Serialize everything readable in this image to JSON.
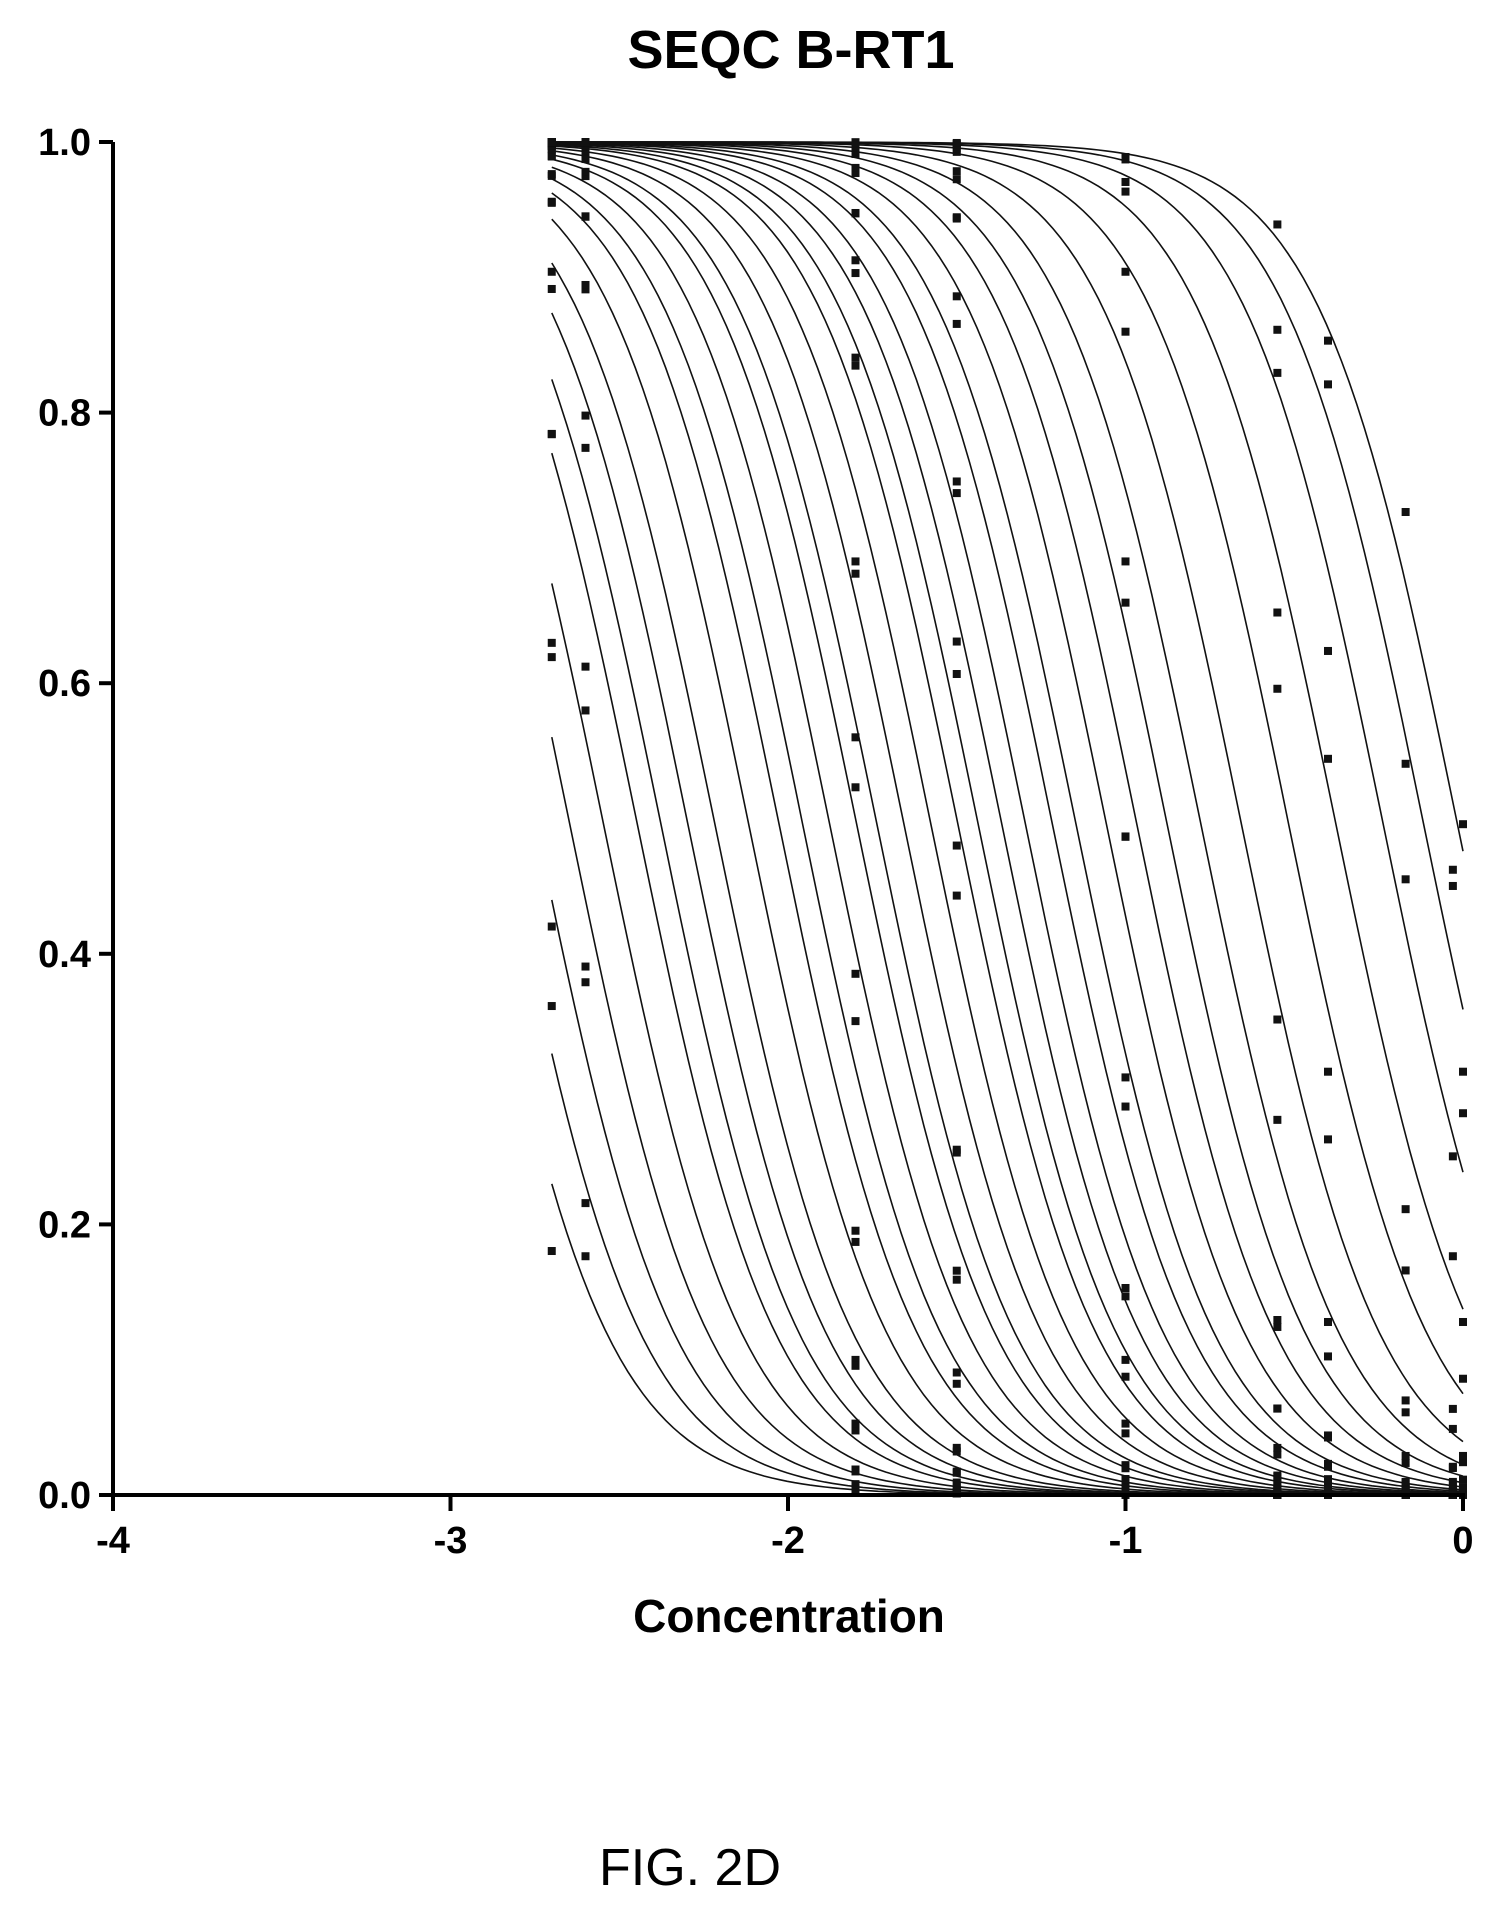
{
  "figure_label": "FIG. 2D",
  "chart_data": {
    "type": "line",
    "title": "SEQC B-RT1",
    "xlabel": "Concentration",
    "ylabel": "",
    "xlim": [
      -4,
      0
    ],
    "ylim": [
      0,
      1
    ],
    "x_ticks": [
      -4,
      -3,
      -2,
      -1,
      0
    ],
    "x_tick_labels": [
      "-4",
      "-3",
      "-2",
      "-1",
      "0"
    ],
    "y_ticks": [
      0,
      0.2,
      0.4,
      0.6,
      0.8,
      1.0
    ],
    "y_tick_labels": [
      "0.0",
      "0.2",
      "0.4",
      "0.6",
      "0.8",
      "1.0"
    ],
    "grid": false,
    "legend": "none",
    "colors": {
      "line": "#111111",
      "point": "#111111",
      "axis": "#000000"
    },
    "measured_concentrations": [
      -2.7,
      -2.6,
      -1.8,
      -1.5,
      -1.0,
      -0.55,
      -0.4,
      -0.17,
      -0.03,
      0
    ],
    "curve_model": "logistic_decreasing",
    "curve_hill_slope": 2.1,
    "series": [
      {
        "ic50": -2.95
      },
      {
        "ic50": -2.85
      },
      {
        "ic50": -2.75
      },
      {
        "ic50": -2.65
      },
      {
        "ic50": -2.55
      },
      {
        "ic50": -2.45
      },
      {
        "ic50": -2.38
      },
      {
        "ic50": -2.3
      },
      {
        "ic50": -2.22
      },
      {
        "ic50": -2.12
      },
      {
        "ic50": -2.03
      },
      {
        "ic50": -1.96
      },
      {
        "ic50": -1.88
      },
      {
        "ic50": -1.8
      },
      {
        "ic50": -1.74
      },
      {
        "ic50": -1.66
      },
      {
        "ic50": -1.58
      },
      {
        "ic50": -1.5
      },
      {
        "ic50": -1.44
      },
      {
        "ic50": -1.37
      },
      {
        "ic50": -1.3
      },
      {
        "ic50": -1.22
      },
      {
        "ic50": -1.15
      },
      {
        "ic50": -1.06
      },
      {
        "ic50": -0.97
      },
      {
        "ic50": -0.88
      },
      {
        "ic50": -0.78
      },
      {
        "ic50": -0.66
      },
      {
        "ic50": -0.52
      },
      {
        "ic50": -0.38
      },
      {
        "ic50": -0.24
      },
      {
        "ic50": -0.12
      },
      {
        "ic50": -0.02
      }
    ]
  }
}
